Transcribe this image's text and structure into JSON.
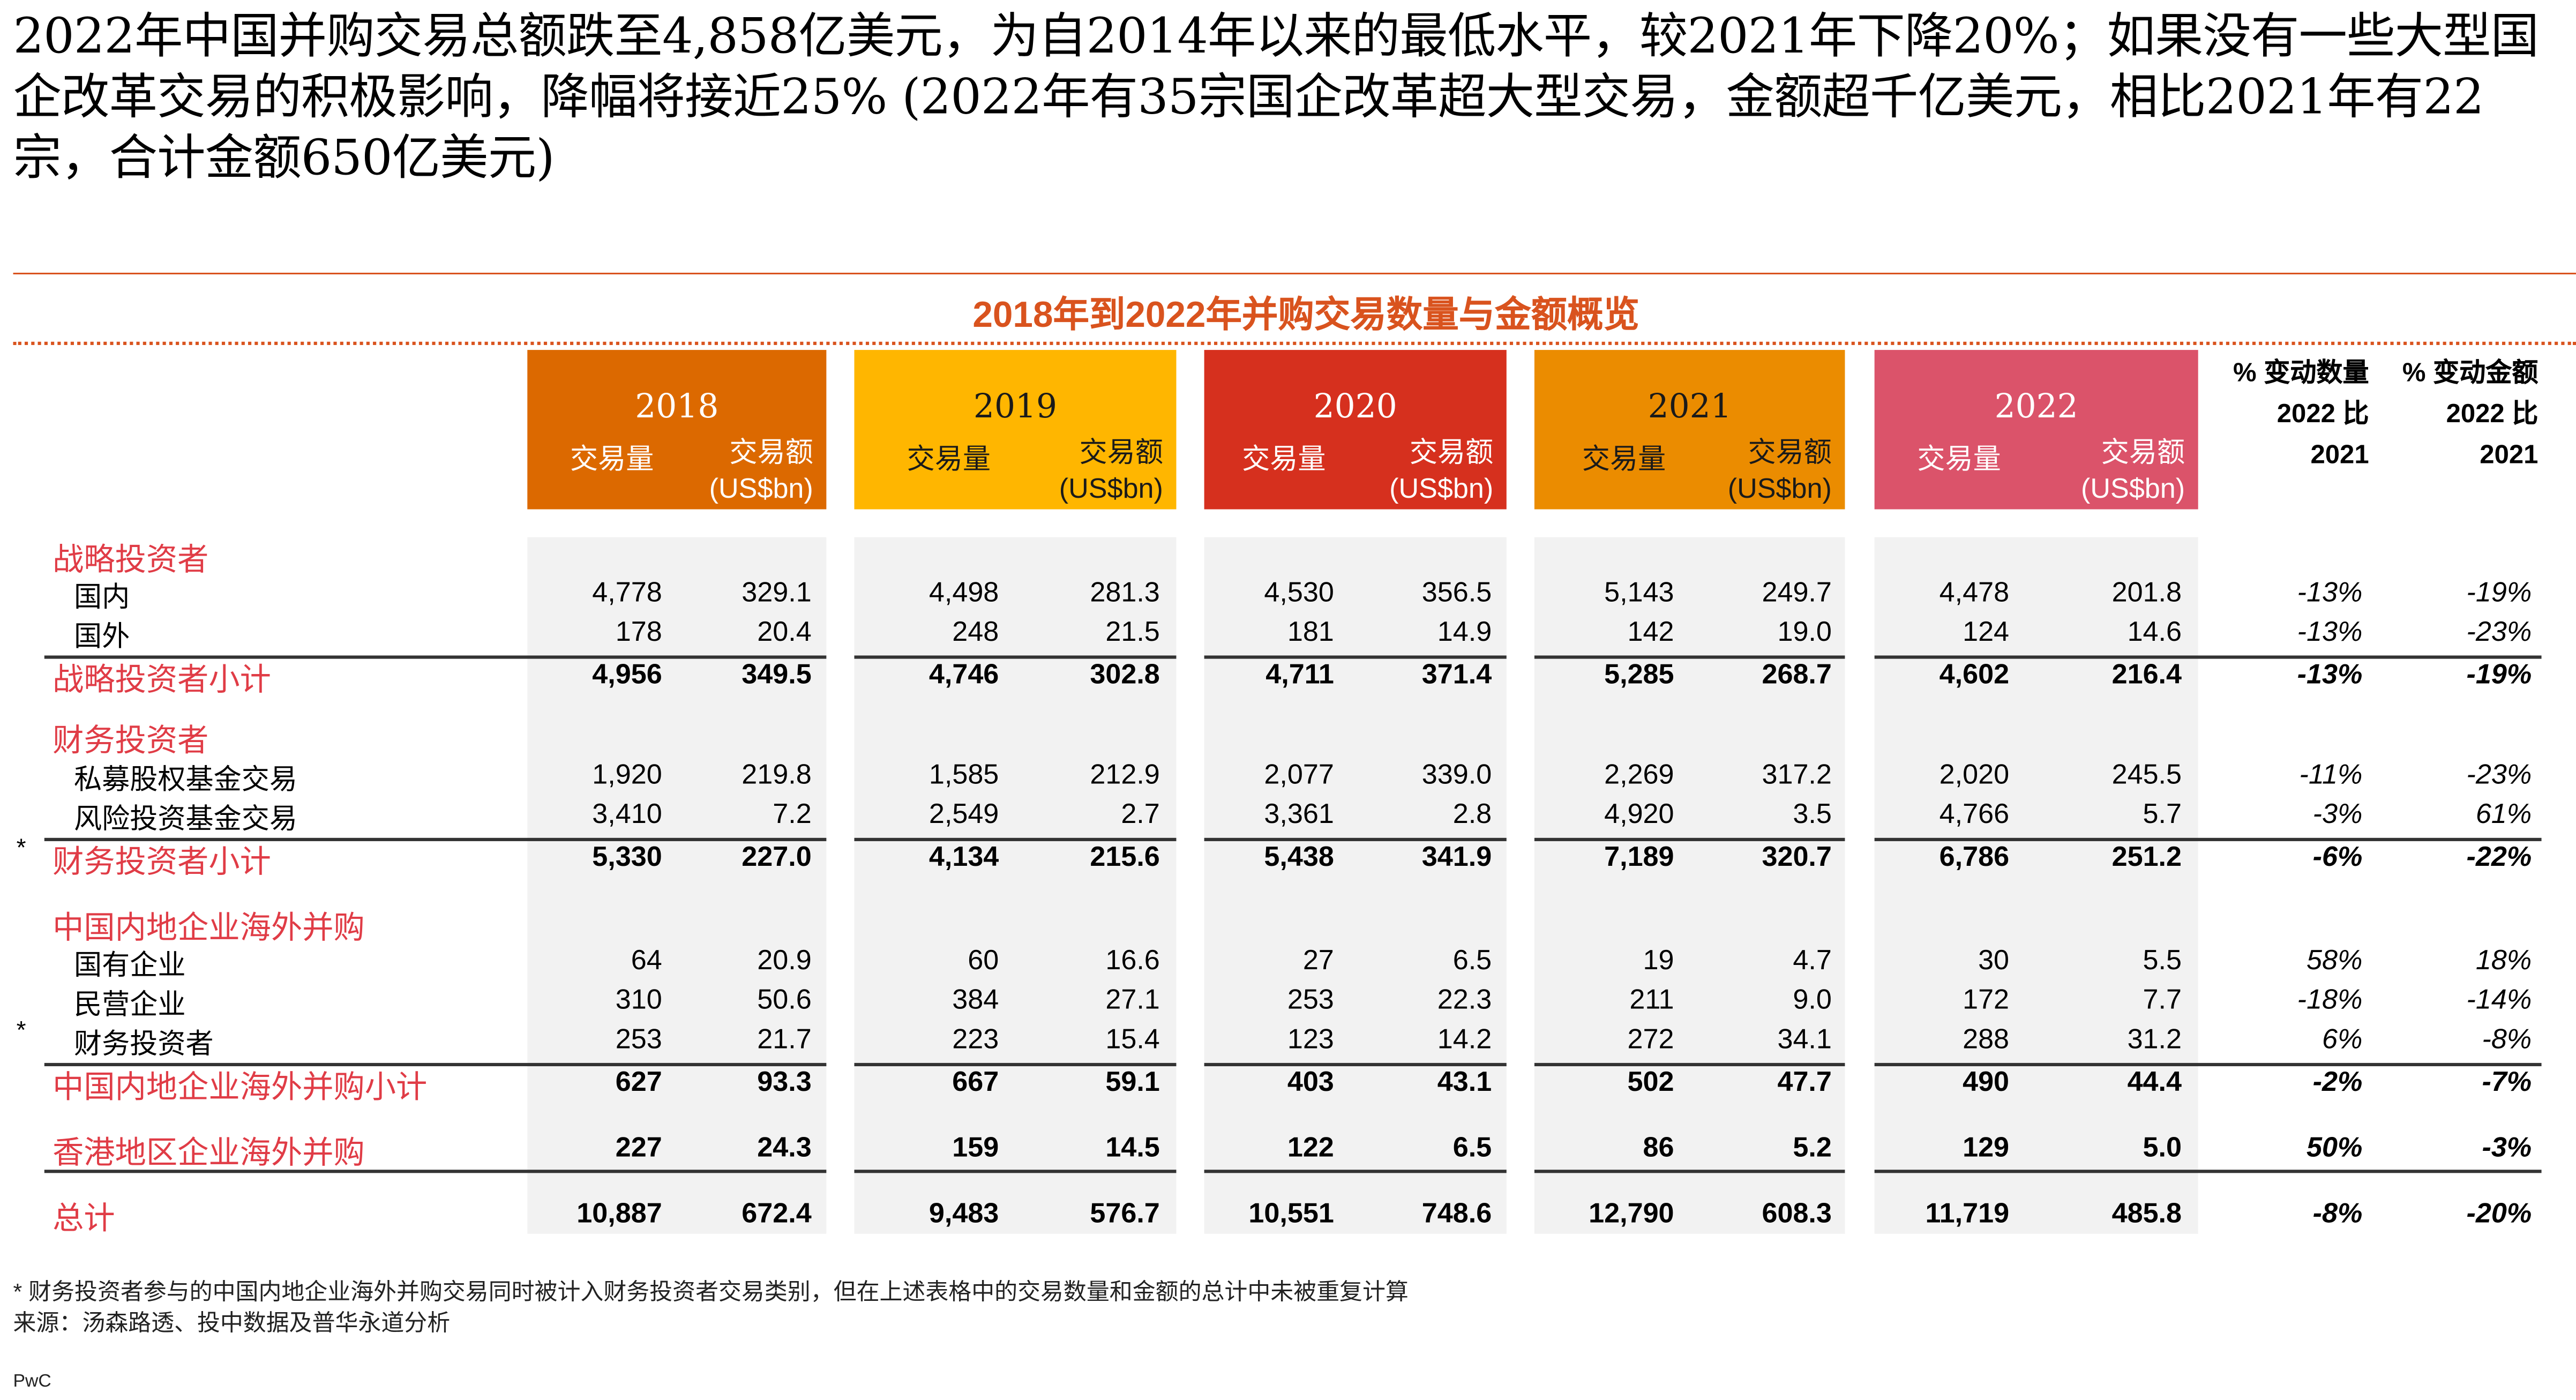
{
  "headline": "2022年中国并购交易总额跌至4,858亿美元，为自2014年以来的最低水平，较2021年下降20%；如果没有一些大型国企改革交易的积极影响，降幅将接近25% (2022年有35宗国企改革超大型交易，金额超千亿美元，相比2021年有22宗，合计金额650亿美元)",
  "table_title": "2018年到2022年并购交易数量与金额概览",
  "years": [
    {
      "year": "2018",
      "color": "#dc6900",
      "text_color": "#ffffff"
    },
    {
      "year": "2019",
      "color": "#ffb600",
      "text_color": "#1a1a1a"
    },
    {
      "year": "2020",
      "color": "#d6301e",
      "text_color": "#ffffff"
    },
    {
      "year": "2021",
      "color": "#eb8c00",
      "text_color": "#1a1a1a"
    },
    {
      "year": "2022",
      "color": "#db536a",
      "text_color": "#ffffff"
    }
  ],
  "col_count_label": "交易量",
  "col_amount_label": "交易额",
  "col_amount_unit": "(US$bn)",
  "change_headers": [
    {
      "line1": "% 变动数量",
      "line2": "2022 比",
      "line3": "2021"
    },
    {
      "line1": "% 变动金额",
      "line2": "2022 比",
      "line3": "2021"
    }
  ],
  "rows": [
    {
      "label": "战略投资者",
      "type": "category"
    },
    {
      "label": "国内",
      "type": "item",
      "values": [
        "4,778",
        "329.1",
        "4,498",
        "281.3",
        "4,530",
        "356.5",
        "5,143",
        "249.7",
        "4,478",
        "201.8"
      ],
      "change": [
        "-13%",
        "-19%"
      ]
    },
    {
      "label": "国外",
      "type": "item",
      "values": [
        "178",
        "20.4",
        "248",
        "21.5",
        "181",
        "14.9",
        "142",
        "19.0",
        "124",
        "14.6"
      ],
      "change": [
        "-13%",
        "-23%"
      ]
    },
    {
      "label": "战略投资者小计",
      "type": "subtotal",
      "values": [
        "4,956",
        "349.5",
        "4,746",
        "302.8",
        "4,711",
        "371.4",
        "5,285",
        "268.7",
        "4,602",
        "216.4"
      ],
      "change": [
        "-13%",
        "-19%"
      ]
    },
    {
      "label": "财务投资者",
      "type": "category"
    },
    {
      "label": "私募股权基金交易",
      "type": "item",
      "values": [
        "1,920",
        "219.8",
        "1,585",
        "212.9",
        "2,077",
        "339.0",
        "2,269",
        "317.2",
        "2,020",
        "245.5"
      ],
      "change": [
        "-11%",
        "-23%"
      ]
    },
    {
      "label": "风险投资基金交易",
      "type": "item",
      "values": [
        "3,410",
        "7.2",
        "2,549",
        "2.7",
        "3,361",
        "2.8",
        "4,920",
        "3.5",
        "4,766",
        "5.7"
      ],
      "change": [
        "-3%",
        "61%"
      ]
    },
    {
      "label": "财务投资者小计",
      "type": "subtotal",
      "star": "*",
      "values": [
        "5,330",
        "227.0",
        "4,134",
        "215.6",
        "5,438",
        "341.9",
        "7,189",
        "320.7",
        "6,786",
        "251.2"
      ],
      "change": [
        "-6%",
        "-22%"
      ]
    },
    {
      "label": "中国内地企业海外并购",
      "type": "category"
    },
    {
      "label": "国有企业",
      "type": "item",
      "values": [
        "64",
        "20.9",
        "60",
        "16.6",
        "27",
        "6.5",
        "19",
        "4.7",
        "30",
        "5.5"
      ],
      "change": [
        "58%",
        "18%"
      ]
    },
    {
      "label": "民营企业",
      "type": "item",
      "values": [
        "310",
        "50.6",
        "384",
        "27.1",
        "253",
        "22.3",
        "211",
        "9.0",
        "172",
        "7.7"
      ],
      "change": [
        "-18%",
        "-14%"
      ]
    },
    {
      "label": "财务投资者",
      "type": "item",
      "star": "*",
      "values": [
        "253",
        "21.7",
        "223",
        "15.4",
        "123",
        "14.2",
        "272",
        "34.1",
        "288",
        "31.2"
      ],
      "change": [
        "6%",
        "-8%"
      ]
    },
    {
      "label": "中国内地企业海外并购小计",
      "type": "subtotal",
      "values": [
        "627",
        "93.3",
        "667",
        "59.1",
        "403",
        "43.1",
        "502",
        "47.7",
        "490",
        "44.4"
      ],
      "change": [
        "-2%",
        "-7%"
      ]
    },
    {
      "label": "香港地区企业海外并购",
      "type": "subtotal",
      "values": [
        "227",
        "24.3",
        "159",
        "14.5",
        "122",
        "6.5",
        "86",
        "5.2",
        "129",
        "5.0"
      ],
      "change": [
        "50%",
        "-3%"
      ]
    },
    {
      "label": "总计",
      "type": "total",
      "values": [
        "10,887",
        "672.4",
        "9,483",
        "576.7",
        "10,551",
        "748.6",
        "12,790",
        "608.3",
        "11,719",
        "485.8"
      ],
      "change": [
        "-8%",
        "-20%"
      ]
    }
  ],
  "footnote": "* 财务投资者参与的中国内地企业海外并购交易同时被计入财务投资者交易类别，但在上述表格中的交易数量和金额的总计中未被重复计算",
  "source": "来源：汤森路透、投中数据及普华永道分析",
  "brand": "PwC"
}
